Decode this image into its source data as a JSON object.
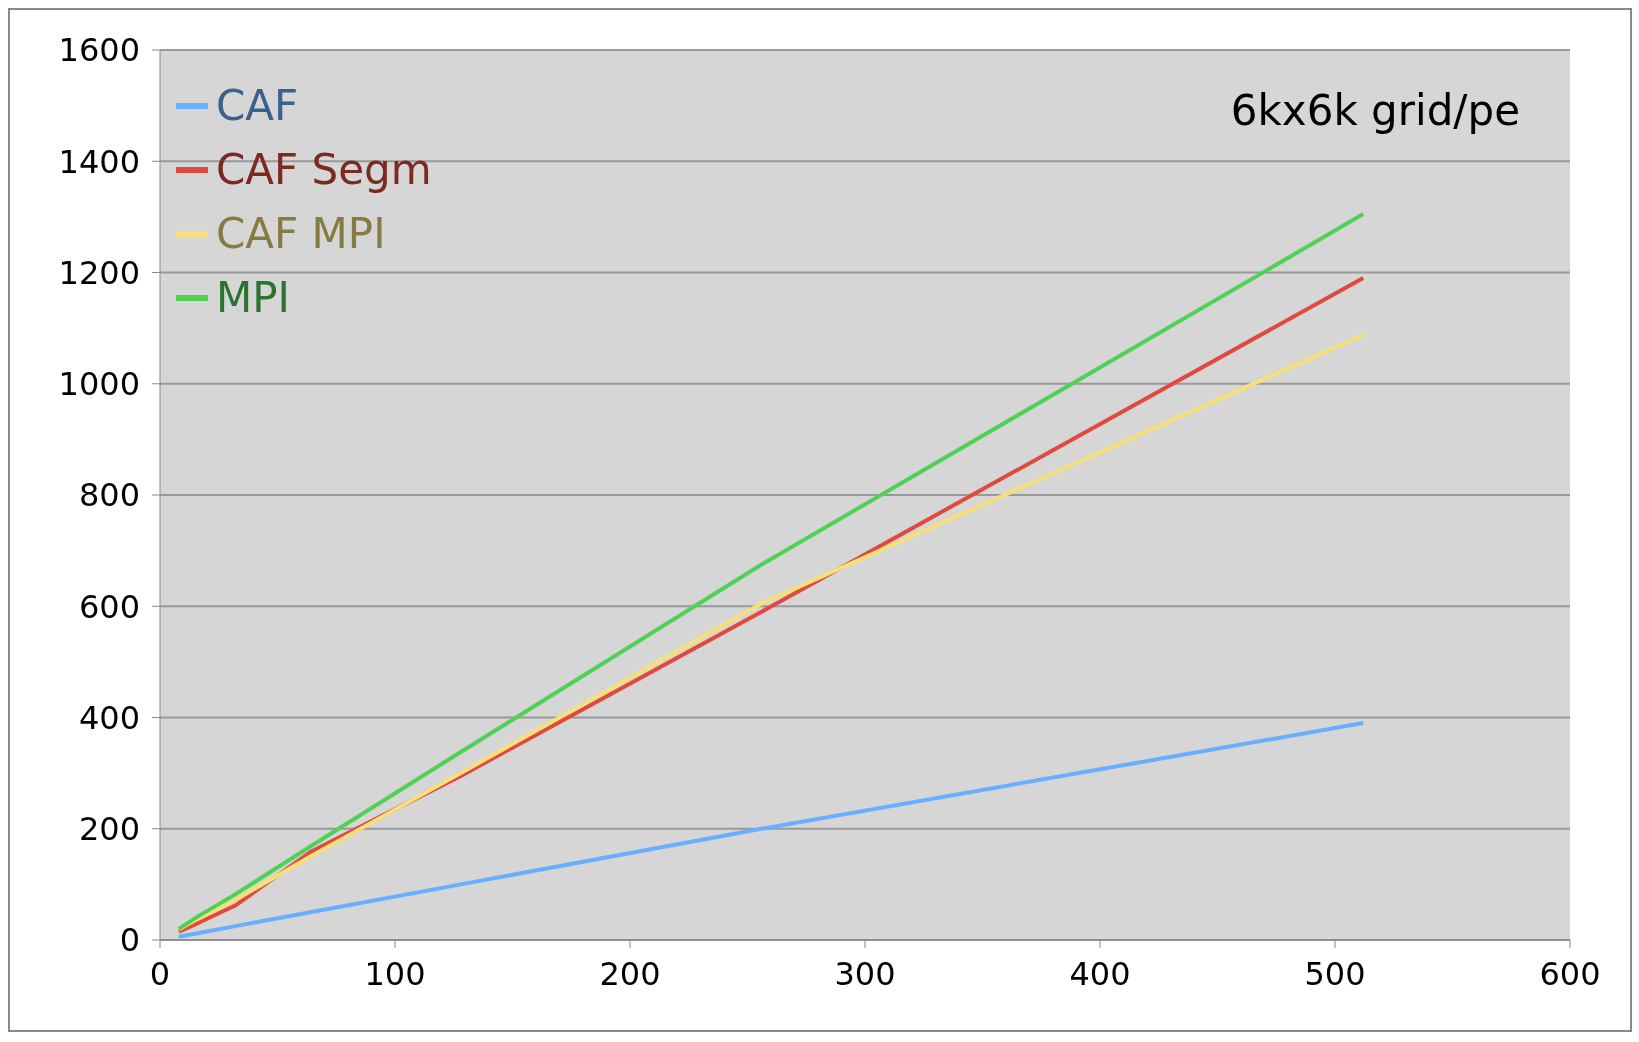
{
  "chart_data": {
    "type": "line",
    "x": [
      8,
      16,
      32,
      64,
      128,
      256,
      512
    ],
    "series": [
      {
        "name": "CAF",
        "color": "#6aafff",
        "values": [
          6,
          12,
          25,
          50,
          100,
          200,
          390
        ]
      },
      {
        "name": "CAF Segm",
        "color": "#e04a3c",
        "values": [
          15,
          30,
          62,
          158,
          295,
          590,
          1190
        ]
      },
      {
        "name": "CAF MPI",
        "color": "#f5e07a",
        "values": [
          19,
          38,
          72,
          150,
          300,
          605,
          1088
        ]
      },
      {
        "name": "MPI",
        "color": "#4fd154",
        "values": [
          20,
          42,
          82,
          168,
          338,
          675,
          1305
        ]
      }
    ],
    "xlim": [
      0,
      600
    ],
    "xticks": [
      0,
      100,
      200,
      300,
      400,
      500,
      600
    ],
    "ylim": [
      0,
      1600
    ],
    "yticks": [
      0,
      200,
      400,
      600,
      800,
      1000,
      1200,
      1400,
      1600
    ],
    "grid": "y",
    "legend": "top left",
    "marker": "none",
    "line_style": "solid",
    "annotations": [
      "6kx6k grid/pe"
    ]
  }
}
